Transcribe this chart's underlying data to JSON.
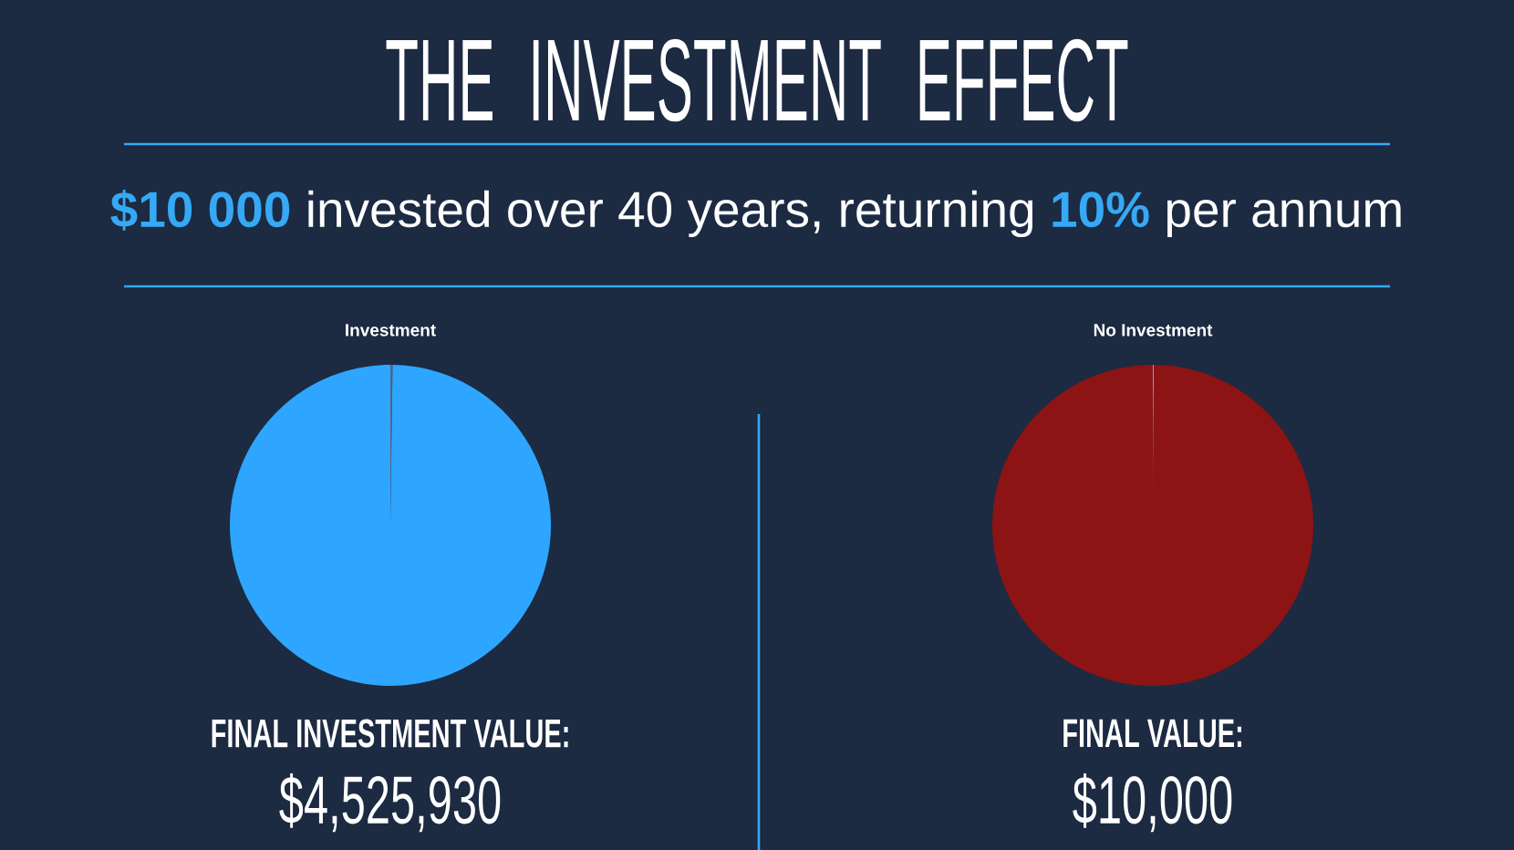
{
  "chart_data": [
    {
      "type": "other",
      "title": "THE INVESTMENT EFFECT",
      "subtitle": "**$10 000** invested over 40 years, returning **10%** per annum"
    },
    {
      "type": "pie",
      "title": "Investment",
      "categories": [
        null,
        null
      ],
      "values": [
        0.22,
        99.78
      ],
      "colors": [
        "#5b5f7e",
        "#2ea6ff"
      ],
      "annotations": [
        "FINAL INVESTMENT VALUE:",
        "$4,525,930"
      ]
    },
    {
      "type": "pie",
      "title": "No Investment",
      "categories": [
        null,
        null
      ],
      "values": [
        0.1,
        99.9
      ],
      "colors": [
        "#6ea8e0",
        "#8c1414"
      ],
      "annotations": [
        "FINAL VALUE:",
        "$10,000"
      ]
    }
  ]
}
